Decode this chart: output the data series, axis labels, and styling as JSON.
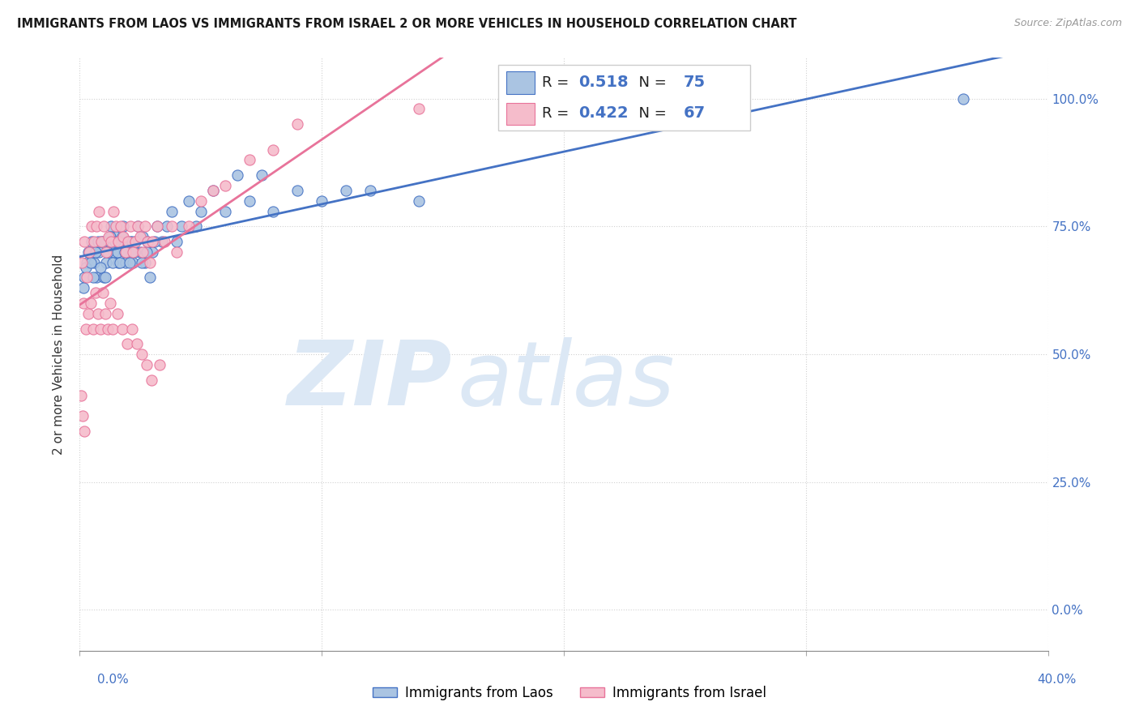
{
  "title": "IMMIGRANTS FROM LAOS VS IMMIGRANTS FROM ISRAEL 2 OR MORE VEHICLES IN HOUSEHOLD CORRELATION CHART",
  "source": "Source: ZipAtlas.com",
  "ylabel": "2 or more Vehicles in Household",
  "xlim_pct": [
    0.0,
    40.0
  ],
  "ylim_pct": [
    -8.0,
    108.0
  ],
  "R_laos": 0.518,
  "N_laos": 75,
  "R_israel": 0.422,
  "N_israel": 67,
  "color_laos": "#aac4e2",
  "color_israel": "#f5bccb",
  "line_color_laos": "#4472c4",
  "line_color_israel": "#e8739a",
  "watermark_zip": "ZIP",
  "watermark_atlas": "atlas",
  "watermark_color": "#dce8f5",
  "laos_x": [
    0.2,
    0.3,
    0.4,
    0.5,
    0.6,
    0.7,
    0.8,
    0.9,
    1.0,
    1.1,
    1.2,
    1.3,
    1.4,
    1.5,
    1.6,
    1.7,
    1.8,
    1.9,
    2.0,
    2.1,
    2.2,
    2.3,
    2.4,
    2.5,
    2.6,
    2.7,
    2.8,
    2.9,
    3.0,
    3.2,
    3.4,
    3.6,
    3.8,
    4.0,
    4.2,
    4.5,
    4.8,
    5.0,
    5.5,
    6.0,
    6.5,
    7.0,
    7.5,
    8.0,
    9.0,
    10.0,
    11.0,
    12.0,
    14.0,
    0.15,
    0.25,
    0.35,
    0.45,
    0.55,
    0.65,
    0.75,
    0.85,
    0.95,
    1.05,
    1.15,
    1.25,
    1.35,
    1.45,
    1.55,
    1.65,
    1.75,
    1.85,
    1.95,
    2.05,
    2.15,
    2.25,
    2.55,
    2.75,
    3.1,
    36.5
  ],
  "laos_y": [
    65,
    68,
    70,
    72,
    68,
    65,
    70,
    72,
    65,
    68,
    72,
    75,
    70,
    73,
    68,
    72,
    75,
    68,
    70,
    72,
    68,
    72,
    75,
    70,
    73,
    68,
    72,
    65,
    70,
    75,
    72,
    75,
    78,
    72,
    75,
    80,
    75,
    78,
    82,
    78,
    85,
    80,
    85,
    78,
    82,
    80,
    82,
    82,
    80,
    63,
    67,
    70,
    68,
    65,
    70,
    72,
    67,
    72,
    65,
    70,
    73,
    68,
    72,
    70,
    68,
    73,
    70,
    72,
    68,
    72,
    70,
    68,
    70,
    72,
    100
  ],
  "israel_x": [
    0.1,
    0.2,
    0.3,
    0.4,
    0.5,
    0.6,
    0.7,
    0.8,
    0.9,
    1.0,
    1.1,
    1.2,
    1.3,
    1.4,
    1.5,
    1.6,
    1.7,
    1.8,
    1.9,
    2.0,
    2.1,
    2.2,
    2.3,
    2.4,
    2.5,
    2.6,
    2.7,
    2.8,
    2.9,
    3.0,
    3.2,
    3.5,
    3.8,
    4.0,
    4.5,
    5.0,
    5.5,
    6.0,
    7.0,
    8.0,
    9.0,
    0.15,
    0.25,
    0.35,
    0.45,
    0.55,
    0.65,
    0.75,
    0.85,
    0.95,
    1.05,
    1.15,
    1.25,
    1.35,
    1.55,
    1.75,
    1.95,
    2.15,
    2.35,
    2.55,
    2.75,
    2.95,
    3.3,
    0.05,
    14.0,
    0.12,
    0.18
  ],
  "israel_y": [
    68,
    72,
    65,
    70,
    75,
    72,
    75,
    78,
    72,
    75,
    70,
    73,
    72,
    78,
    75,
    72,
    75,
    73,
    70,
    72,
    75,
    70,
    72,
    75,
    73,
    70,
    75,
    72,
    68,
    72,
    75,
    72,
    75,
    70,
    75,
    80,
    82,
    83,
    88,
    90,
    95,
    60,
    55,
    58,
    60,
    55,
    62,
    58,
    55,
    62,
    58,
    55,
    60,
    55,
    58,
    55,
    52,
    55,
    52,
    50,
    48,
    45,
    48,
    42,
    98,
    38,
    35
  ]
}
